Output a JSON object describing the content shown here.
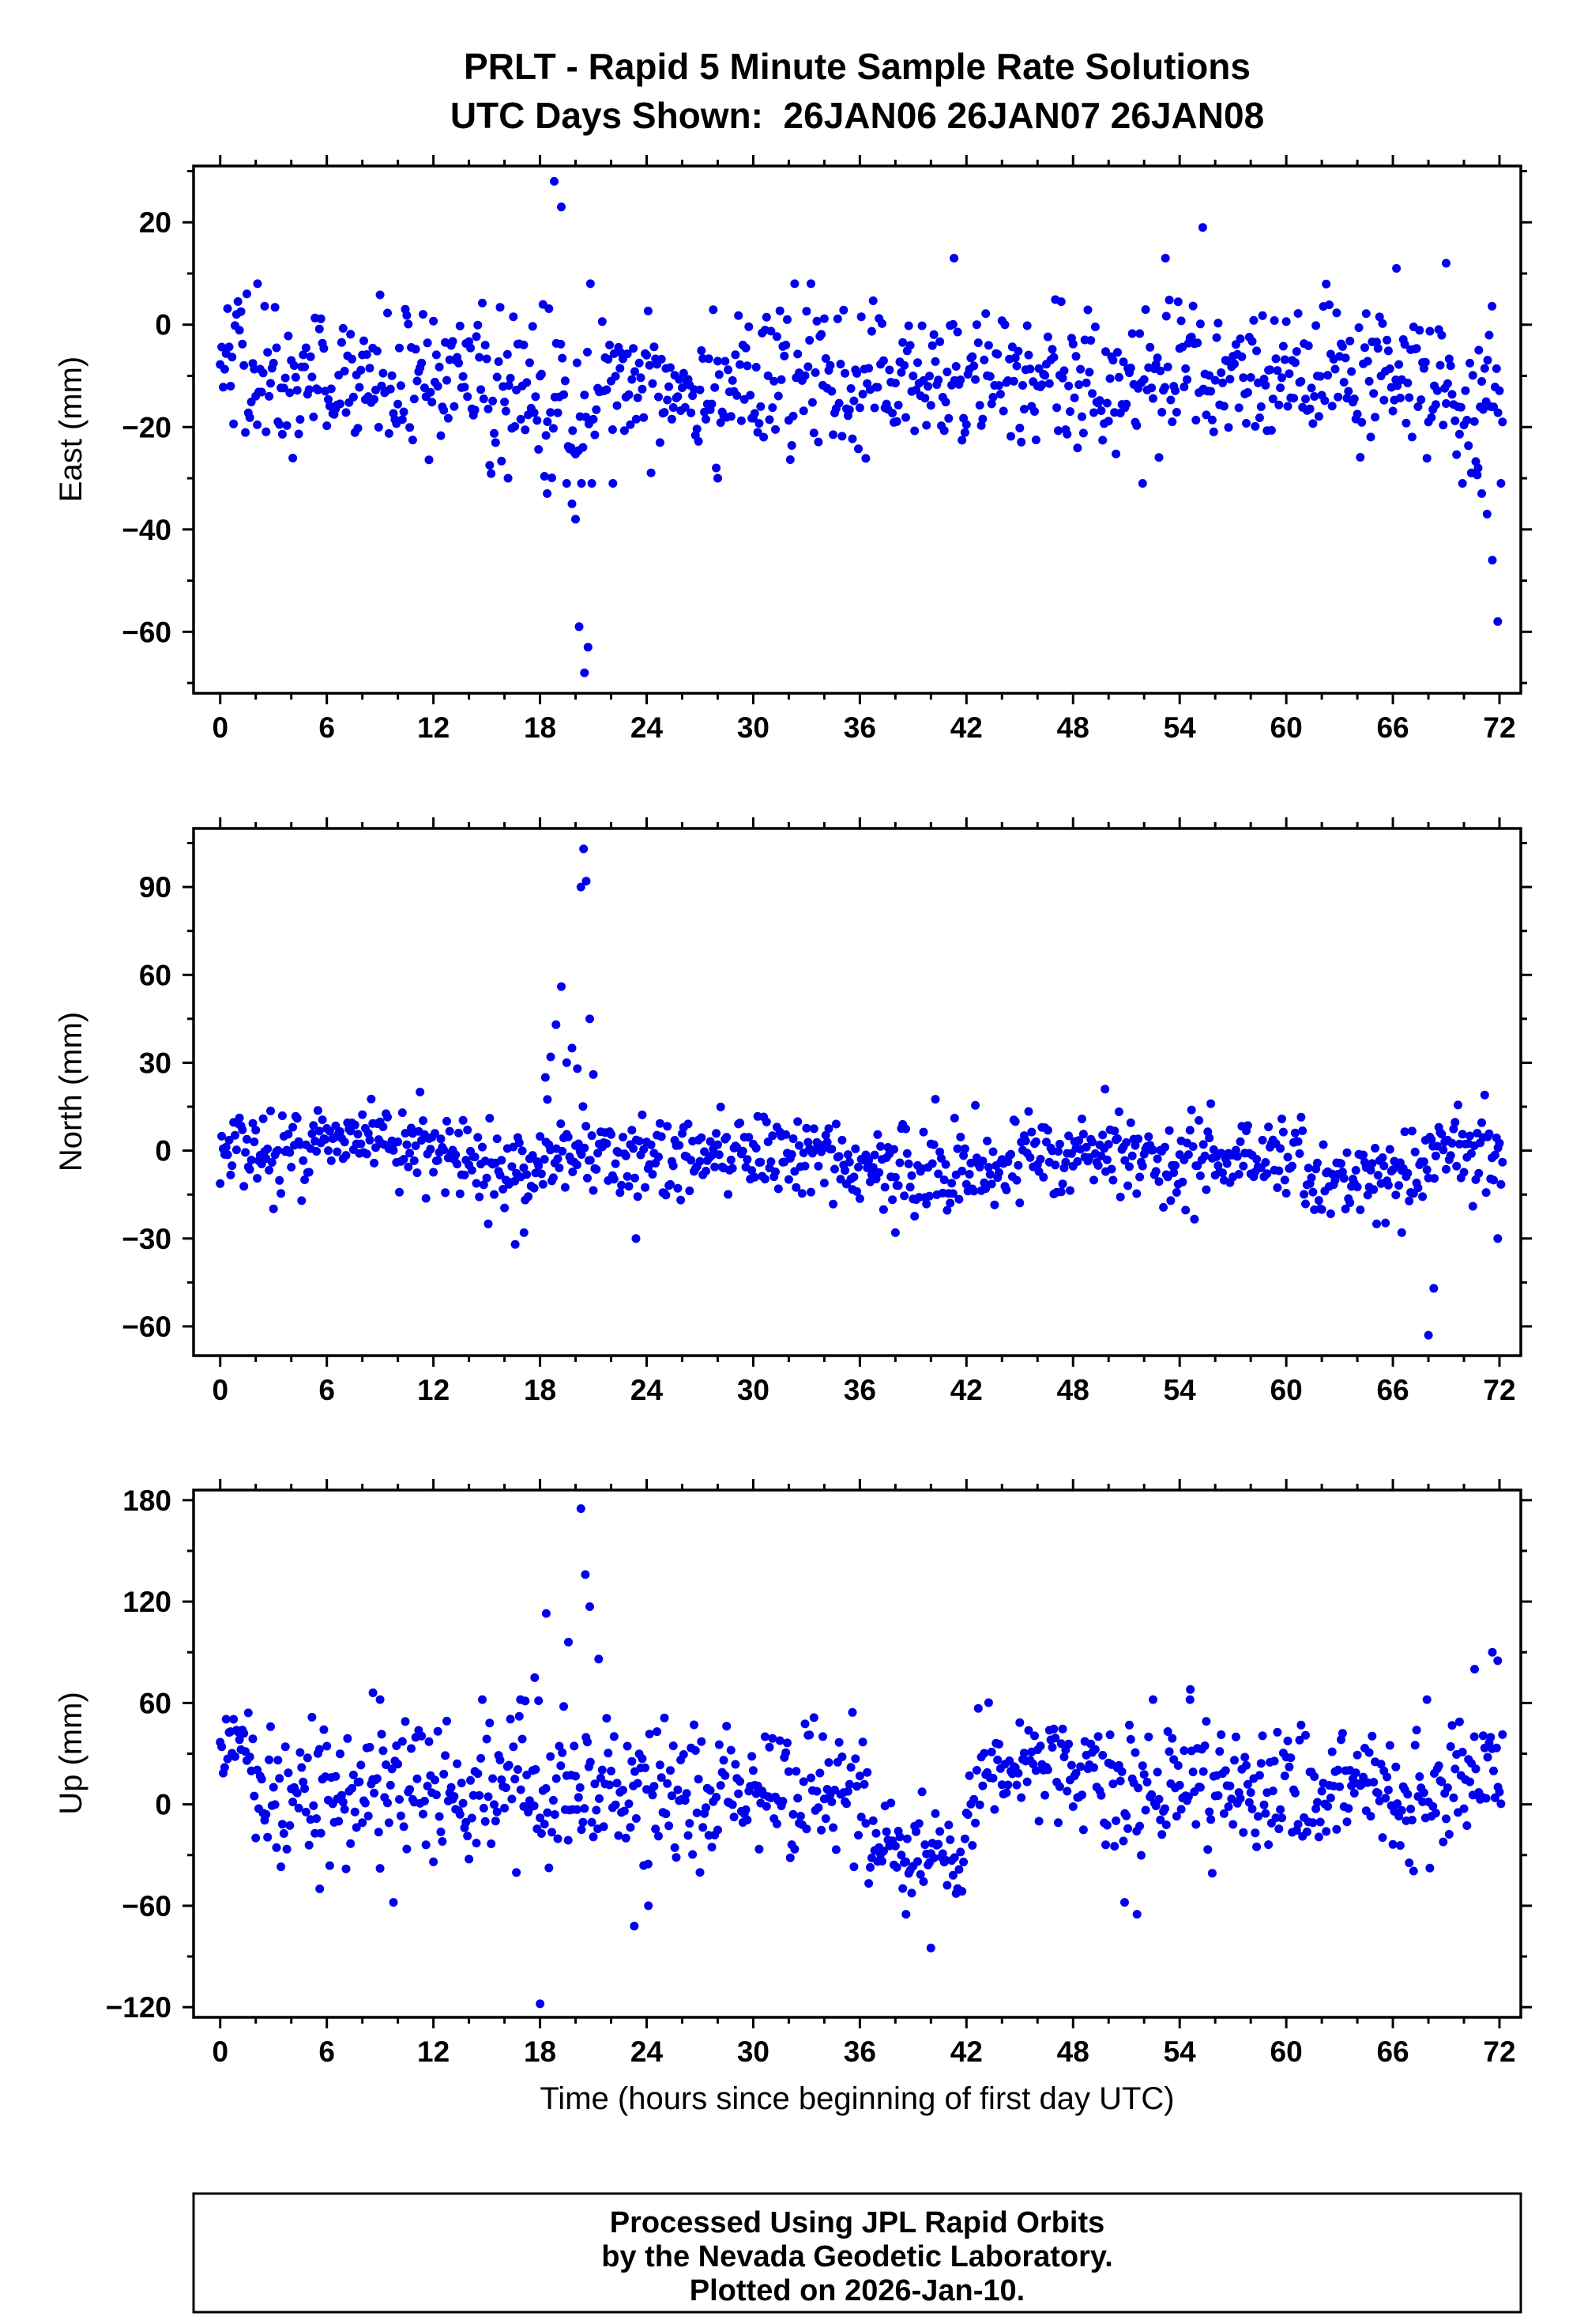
{
  "header": {
    "station": "PRLT",
    "days_shown": [
      "26JAN06",
      "26JAN07",
      "26JAN08"
    ]
  },
  "footer": {
    "line1": "Processed Using JPL Rapid Orbits",
    "line2": "by the Nevada Geodetic Laboratory.",
    "line3": "Plotted on 2026-Jan-10."
  },
  "chart_data": {
    "type": "scatter",
    "title": "PRLT - Rapid 5 Minute Sample Rate Solutions",
    "subtitle": "UTC Days Shown:  26JAN06 26JAN07 26JAN08",
    "xlabel": "Time (hours since beginning of first day UTC)",
    "xlim": [
      -1.5,
      73.2
    ],
    "xticks": [
      0,
      6,
      12,
      18,
      24,
      30,
      36,
      42,
      48,
      54,
      60,
      66,
      72
    ],
    "x_minor_step": 2,
    "x_data_range": [
      0,
      72.2
    ],
    "samples_per_hour": 12,
    "sample_rate_minutes": 5,
    "marker_color": "#0000EE",
    "axis_color": "#000000",
    "grid": false,
    "legend": false,
    "seed": 42,
    "panels": [
      {
        "name": "east",
        "ylabel": "East (mm)",
        "ylim": [
          -72,
          31
        ],
        "yticks": [
          20,
          0,
          -20,
          -40,
          -60
        ],
        "y_minor_step": 10,
        "baseline": {
          "mean": -11,
          "sigma": 7,
          "clip": [
            -31,
            8
          ]
        },
        "segments": [
          {
            "from": 0,
            "to": 1.2,
            "mean": -3,
            "sigma": 5
          },
          {
            "from": 15,
            "to": 22,
            "mean": -14,
            "sigma": 9
          },
          {
            "from": 69.5,
            "to": 72.3,
            "mean": -16,
            "sigma": 8
          }
        ],
        "outliers": [
          [
            2.1,
            8
          ],
          [
            18.8,
            28
          ],
          [
            19.2,
            23
          ],
          [
            18.4,
            -33
          ],
          [
            19.8,
            -35
          ],
          [
            20.0,
            -38
          ],
          [
            16.2,
            -30
          ],
          [
            22.1,
            -31
          ],
          [
            28.0,
            -30
          ],
          [
            20.2,
            -59
          ],
          [
            20.5,
            -68
          ],
          [
            20.7,
            -63
          ],
          [
            41.3,
            13
          ],
          [
            53.2,
            13
          ],
          [
            55.3,
            19
          ],
          [
            66.2,
            11
          ],
          [
            69.0,
            12
          ],
          [
            70.8,
            -28
          ],
          [
            71.0,
            -33
          ],
          [
            71.3,
            -37
          ],
          [
            71.6,
            -46
          ],
          [
            71.9,
            -58
          ]
        ]
      },
      {
        "name": "north",
        "ylabel": "North (mm)",
        "ylim": [
          -70,
          110
        ],
        "yticks": [
          90,
          60,
          30,
          0,
          -30,
          -60
        ],
        "y_minor_step": 15,
        "baseline": {
          "mean": -1,
          "sigma": 7,
          "clip": [
            -25,
            20
          ]
        },
        "segments": [
          {
            "from": 5.5,
            "to": 10,
            "mean": 4,
            "sigma": 5
          },
          {
            "from": 14.5,
            "to": 18,
            "mean": -6,
            "sigma": 9
          },
          {
            "from": 36,
            "to": 44,
            "mean": -7,
            "sigma": 8
          },
          {
            "from": 61,
            "to": 67.5,
            "mean": -9,
            "sigma": 7
          }
        ],
        "outliers": [
          [
            18.3,
            25
          ],
          [
            18.6,
            32
          ],
          [
            18.9,
            43
          ],
          [
            19.2,
            56
          ],
          [
            19.5,
            30
          ],
          [
            19.8,
            35
          ],
          [
            20.1,
            28
          ],
          [
            20.3,
            90
          ],
          [
            20.45,
            103
          ],
          [
            20.6,
            92
          ],
          [
            20.8,
            45
          ],
          [
            21.0,
            26
          ],
          [
            16.6,
            -32
          ],
          [
            17.1,
            -28
          ],
          [
            23.4,
            -30
          ],
          [
            38.0,
            -28
          ],
          [
            49.8,
            21
          ],
          [
            66.5,
            -28
          ],
          [
            68.0,
            -63
          ],
          [
            68.3,
            -47
          ],
          [
            71.9,
            -30
          ]
        ]
      },
      {
        "name": "up",
        "ylabel": "Up (mm)",
        "ylim": [
          -126,
          186
        ],
        "yticks": [
          180,
          120,
          60,
          0,
          -60,
          -120
        ],
        "y_minor_step": 30,
        "baseline": {
          "mean": 8,
          "sigma": 20,
          "clip": [
            -58,
            62
          ]
        },
        "segments": [
          {
            "from": 0,
            "to": 2,
            "mean": 28,
            "sigma": 16
          },
          {
            "from": 36.5,
            "to": 42,
            "mean": -30,
            "sigma": 13
          },
          {
            "from": 42.5,
            "to": 49.5,
            "mean": 22,
            "sigma": 14
          },
          {
            "from": 69.5,
            "to": 72.3,
            "mean": 22,
            "sigma": 20
          }
        ],
        "outliers": [
          [
            5.6,
            -50
          ],
          [
            8.6,
            66
          ],
          [
            9.0,
            62
          ],
          [
            16.9,
            62
          ],
          [
            17.7,
            75
          ],
          [
            18.0,
            -118
          ],
          [
            18.35,
            113
          ],
          [
            19.6,
            96
          ],
          [
            20.3,
            175
          ],
          [
            20.55,
            136
          ],
          [
            20.8,
            117
          ],
          [
            21.3,
            86
          ],
          [
            23.3,
            -72
          ],
          [
            24.1,
            -60
          ],
          [
            38.6,
            -65
          ],
          [
            40.0,
            -85
          ],
          [
            50.9,
            -58
          ],
          [
            51.6,
            -65
          ],
          [
            54.6,
            68
          ],
          [
            70.6,
            80
          ],
          [
            71.6,
            90
          ],
          [
            71.9,
            85
          ]
        ]
      }
    ]
  }
}
